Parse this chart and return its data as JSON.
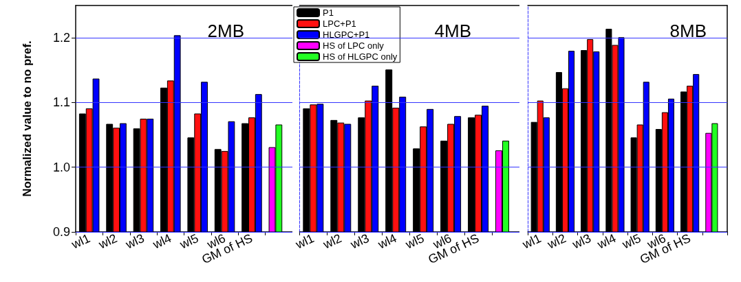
{
  "chart_data": [
    {
      "type": "bar",
      "ylabel": "Normalized value to no pref.",
      "annotations": [
        "2MB"
      ],
      "categories": [
        "wl1",
        "wl2",
        "wl3",
        "wl4",
        "wl5",
        "wl6",
        "GM of HS",
        null
      ],
      "ylim": [
        0.9,
        1.25
      ],
      "yticks": [
        0.9,
        {
          "value": 1,
          "label": "1.0"
        },
        1.1,
        1.2
      ],
      "grid": "y",
      "legend": false,
      "series": [
        {
          "color": "#000000",
          "values": [
            1.083,
            1.067,
            1.06,
            1.123,
            1.046,
            1.028,
            1.068,
            null
          ]
        },
        {
          "color": "#ff1010",
          "values": [
            1.091,
            1.061,
            1.075,
            1.134,
            1.083,
            1.025,
            1.077,
            null
          ]
        },
        {
          "color": "#0000ff",
          "values": [
            1.137,
            1.068,
            1.075,
            1.204,
            1.132,
            1.071,
            1.113,
            null
          ]
        },
        {
          "color": "#ff00ff",
          "values": [
            null,
            null,
            null,
            null,
            null,
            null,
            null,
            1.031
          ]
        },
        {
          "color": "#22ff22",
          "values": [
            null,
            null,
            null,
            null,
            null,
            null,
            null,
            1.066
          ]
        }
      ]
    },
    {
      "type": "bar",
      "annotations": [
        "4MB"
      ],
      "categories": [
        "wl1",
        "wl2",
        "wl3",
        "wl4",
        "wl5",
        "wl6",
        "GM of HS",
        null
      ],
      "ylim": [
        0.9,
        1.25
      ],
      "yticks": [
        0.9,
        1,
        1.1,
        1.2
      ],
      "grid": "y",
      "tick_labels": "x",
      "legend": "top left",
      "series": [
        {
          "name": "P1",
          "color": "#000000",
          "values": [
            1.091,
            1.073,
            1.077,
            1.151,
            1.029,
            1.041,
            1.077,
            null
          ]
        },
        {
          "name": "LPC+P1",
          "color": "#ff1010",
          "values": [
            1.097,
            1.069,
            1.103,
            1.092,
            1.063,
            1.067,
            1.081,
            null
          ]
        },
        {
          "name": "HLGPC+P1",
          "color": "#0000ff",
          "values": [
            1.098,
            1.067,
            1.126,
            1.109,
            1.09,
            1.079,
            1.095,
            null
          ]
        },
        {
          "name": "HS of LPC only",
          "color": "#ff00ff",
          "values": [
            null,
            null,
            null,
            null,
            null,
            null,
            null,
            1.026
          ]
        },
        {
          "name": "HS of HLGPC only",
          "color": "#22ff22",
          "values": [
            null,
            null,
            null,
            null,
            null,
            null,
            null,
            1.041
          ]
        }
      ]
    },
    {
      "type": "bar",
      "annotations": [
        "8MB"
      ],
      "categories": [
        "wl1",
        "wl2",
        "wl3",
        "wl4",
        "wl5",
        "wl6",
        "GM of HS",
        null
      ],
      "ylim": [
        0.9,
        1.25
      ],
      "yticks": [
        0.9,
        1,
        1.1,
        1.2
      ],
      "grid": "y",
      "tick_labels": "x",
      "legend": false,
      "series": [
        {
          "color": "#000000",
          "values": [
            1.07,
            1.147,
            1.181,
            1.214,
            1.046,
            1.059,
            1.117,
            null
          ]
        },
        {
          "color": "#ff1010",
          "values": [
            1.103,
            1.122,
            1.198,
            1.189,
            1.066,
            1.085,
            1.126,
            null
          ]
        },
        {
          "color": "#0000ff",
          "values": [
            1.077,
            1.18,
            1.179,
            1.201,
            1.132,
            1.106,
            1.144,
            null
          ]
        },
        {
          "color": "#ff00ff",
          "values": [
            null,
            null,
            null,
            null,
            null,
            null,
            null,
            1.053
          ]
        },
        {
          "color": "#22ff22",
          "values": [
            null,
            null,
            null,
            null,
            null,
            null,
            null,
            1.068
          ]
        }
      ]
    }
  ]
}
